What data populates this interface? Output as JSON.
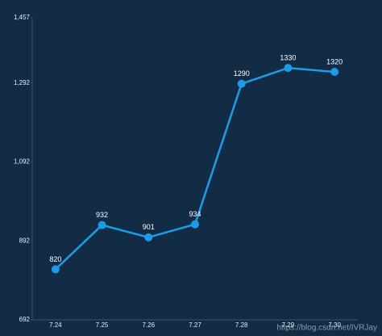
{
  "chart_data": {
    "type": "line",
    "categories": [
      "7.24",
      "7.25",
      "7.26",
      "7.27",
      "7.28",
      "7.29",
      "7.30"
    ],
    "values": [
      820,
      932,
      901,
      934,
      1290,
      1330,
      1320
    ],
    "color": "#1e9be8",
    "ylim": [
      692,
      1457
    ],
    "yticks": [
      692,
      892,
      {
        "value": 1092,
        "label": "1,092"
      },
      {
        "value": 1292,
        "label": "1,292"
      },
      {
        "value": 1457,
        "label": "1,457"
      }
    ],
    "watermark": "https://blog.csdn.net/IVRJay"
  }
}
